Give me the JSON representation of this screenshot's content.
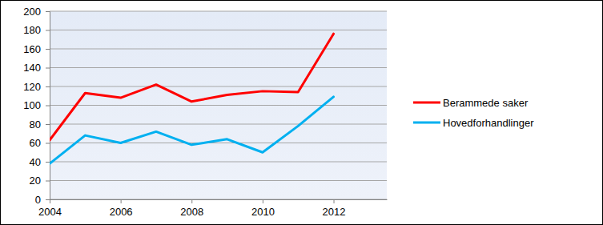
{
  "chart_data": {
    "type": "line",
    "x": [
      2004,
      2005,
      2006,
      2007,
      2008,
      2009,
      2010,
      2011,
      2012
    ],
    "series": [
      {
        "name": "Berammede saker",
        "color": "#ff0000",
        "values": [
          63,
          113,
          108,
          122,
          104,
          111,
          115,
          114,
          176
        ]
      },
      {
        "name": "Hovedforhandlinger",
        "color": "#00b0f0",
        "values": [
          38,
          68,
          60,
          72,
          58,
          64,
          50,
          78,
          109
        ]
      }
    ],
    "xlim": [
      2004,
      2013.5
    ],
    "xticks": [
      2004,
      2006,
      2008,
      2010,
      2012
    ],
    "ylim": [
      0,
      200
    ],
    "yticks": [
      0,
      20,
      40,
      60,
      80,
      100,
      120,
      140,
      160,
      180,
      200
    ],
    "grid": true,
    "legend": "right"
  }
}
